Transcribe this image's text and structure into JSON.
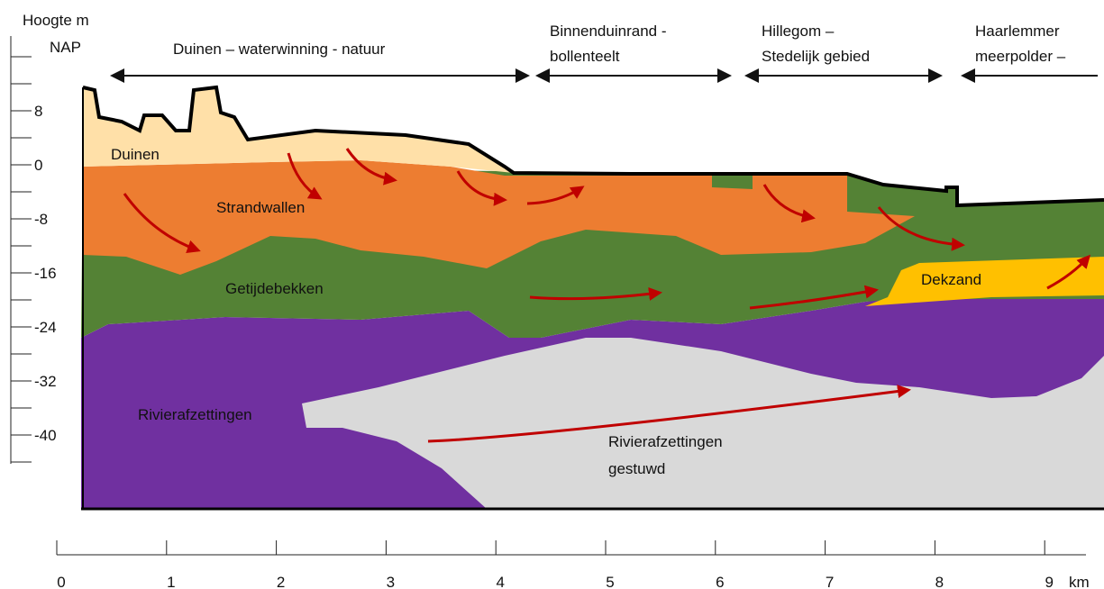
{
  "axis": {
    "title_lines": [
      "Hoogte m",
      "NAP"
    ],
    "depth_ticks": [
      8,
      0,
      -8,
      -16,
      -24,
      -32,
      -40
    ],
    "distance_ticks": [
      0,
      1,
      2,
      3,
      4,
      5,
      6,
      7,
      8,
      9
    ],
    "distance_unit": "km"
  },
  "zones": [
    {
      "lines": [
        "Duinen – waterwinning - natuur"
      ]
    },
    {
      "lines": [
        "Binnenduinrand -",
        "bollenteelt"
      ]
    },
    {
      "lines": [
        "Hillegom –",
        "Stedelijk gebied"
      ]
    },
    {
      "lines": [
        "Haarlemmer",
        "meerpolder –"
      ]
    }
  ],
  "layers": [
    {
      "lines": [
        "Duinen"
      ]
    },
    {
      "lines": [
        "Strandwallen"
      ]
    },
    {
      "lines": [
        "Getijdebekken"
      ]
    },
    {
      "lines": [
        "Dekzand"
      ]
    },
    {
      "lines": [
        "Rivierafzettingen"
      ]
    },
    {
      "lines": [
        "Rivierafzettingen",
        "gestuwd"
      ]
    }
  ]
}
